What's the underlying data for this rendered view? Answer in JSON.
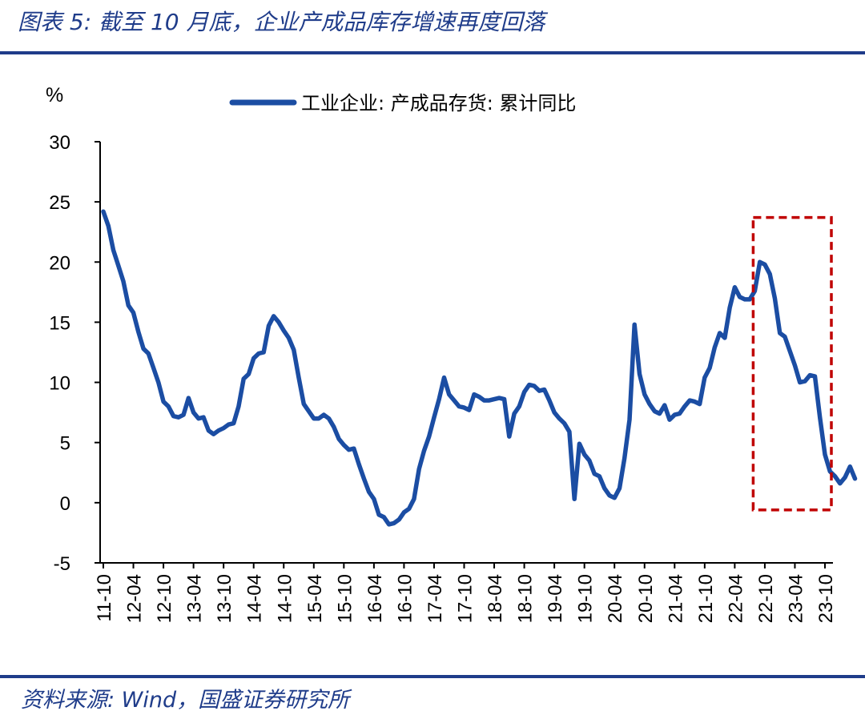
{
  "header": {
    "title": "图表 5:  截至 10 月底，企业产成品库存增速再度回落"
  },
  "footer": {
    "source": "资料来源:  Wind，国盛证券研究所"
  },
  "colors": {
    "brand": "#1f3c8a",
    "series": "#1b4da3",
    "highlight": "#c00000"
  },
  "chart_data": {
    "type": "line",
    "ylabel": "%",
    "ylim": [
      -5,
      30
    ],
    "yticks": [
      "30",
      "25",
      "20",
      "15",
      "10",
      "5",
      "0",
      "-5"
    ],
    "ytick_values": [
      30,
      25,
      20,
      15,
      10,
      5,
      0,
      -5
    ],
    "xticks": [
      "11-10",
      "12-04",
      "12-10",
      "13-04",
      "13-10",
      "14-04",
      "14-10",
      "15-04",
      "15-10",
      "16-04",
      "16-10",
      "17-04",
      "17-10",
      "18-04",
      "18-10",
      "19-04",
      "19-10",
      "20-04",
      "20-10",
      "21-04",
      "21-10",
      "22-04",
      "22-10",
      "23-04",
      "23-10"
    ],
    "grid": false,
    "legend_position": "top-center",
    "series": [
      {
        "name": "工业企业: 产成品存货: 累计同比",
        "x_start": "2011-10",
        "values": [
          24.2,
          23.0,
          21.0,
          19.7,
          18.4,
          16.4,
          15.8,
          14.2,
          12.8,
          12.4,
          11.2,
          10.0,
          8.4,
          8.0,
          7.2,
          7.1,
          7.3,
          8.7,
          7.5,
          7.0,
          7.1,
          6.0,
          5.7,
          6.0,
          6.2,
          6.5,
          6.6,
          8.0,
          10.3,
          10.7,
          12.0,
          12.4,
          12.5,
          14.7,
          15.5,
          15.0,
          14.3,
          13.7,
          12.7,
          10.4,
          8.2,
          7.6,
          7.0,
          7.0,
          7.3,
          7.0,
          6.3,
          5.3,
          4.8,
          4.4,
          4.5,
          3.2,
          2.0,
          0.9,
          0.3,
          -1.0,
          -1.2,
          -1.8,
          -1.7,
          -1.4,
          -0.8,
          -0.5,
          0.3,
          2.8,
          4.3,
          5.5,
          7.1,
          8.6,
          10.4,
          9.0,
          8.5,
          8.0,
          7.9,
          7.7,
          9.0,
          8.8,
          8.5,
          8.5,
          8.6,
          8.7,
          8.6,
          5.5,
          7.4,
          8.0,
          9.2,
          9.8,
          9.7,
          9.3,
          9.4,
          8.5,
          7.5,
          7.0,
          6.6,
          5.9,
          0.3,
          4.9,
          4.0,
          3.5,
          2.4,
          2.2,
          1.2,
          0.6,
          0.4,
          1.2,
          3.7,
          6.9,
          14.8,
          10.7,
          9.0,
          8.2,
          7.6,
          7.4,
          8.1,
          6.9,
          7.3,
          7.4,
          8.0,
          8.5,
          8.4,
          8.2,
          10.4,
          11.2,
          12.9,
          14.1,
          13.7,
          16.2,
          17.9,
          17.1,
          16.9,
          16.9,
          17.6,
          20.0,
          19.8,
          19.0,
          17.0,
          14.1,
          13.8,
          12.6,
          11.4,
          10.0,
          10.1,
          10.6,
          10.5,
          7.1,
          4.0,
          2.6,
          2.2,
          1.6,
          2.1,
          3.0,
          2.0
        ]
      }
    ],
    "highlight_box": {
      "from": "22-08",
      "to": "23-10",
      "y_from": -0.6,
      "y_to": 23.7
    }
  }
}
